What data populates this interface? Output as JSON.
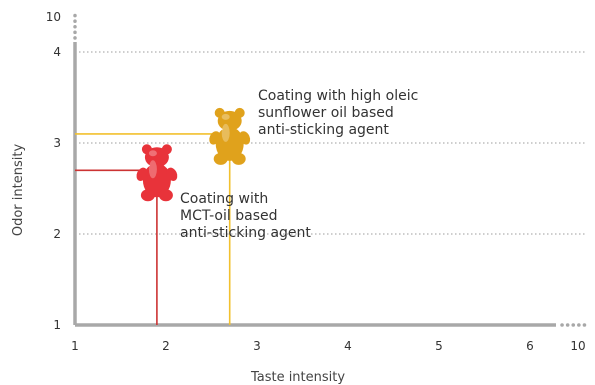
{
  "chart_data": {
    "type": "scatter",
    "xlabel": "Taste intensity",
    "ylabel": "Odor intensity",
    "xlim": [
      1,
      6.3
    ],
    "ylim": [
      1,
      4
    ],
    "x_ticks": [
      "1",
      "2",
      "3",
      "4",
      "5",
      "6"
    ],
    "y_ticks": [
      "1",
      "2",
      "3",
      "4"
    ],
    "x_axis_end_label": "10",
    "y_axis_end_label": "10",
    "grid": "horizontal dotted",
    "colors": {
      "axis": "#a8a8a8",
      "grid": "#b0b0b0",
      "mct": "#cc3333",
      "oleic": "#f2c12e",
      "bear_red": "#e8333a",
      "bear_yellow": "#e0a21c"
    },
    "points": [
      {
        "x": 1.9,
        "y": 2.7,
        "marker": "red gummy bear",
        "color": "#cc3333",
        "annotation": [
          "Coating with",
          "MCT-oil based",
          "anti-sticking agent"
        ]
      },
      {
        "x": 2.7,
        "y": 3.1,
        "marker": "yellow gummy bear",
        "color": "#f2c12e",
        "annotation": [
          "Coating with high oleic",
          "sunflower oil based",
          "anti-sticking agent"
        ]
      }
    ]
  }
}
